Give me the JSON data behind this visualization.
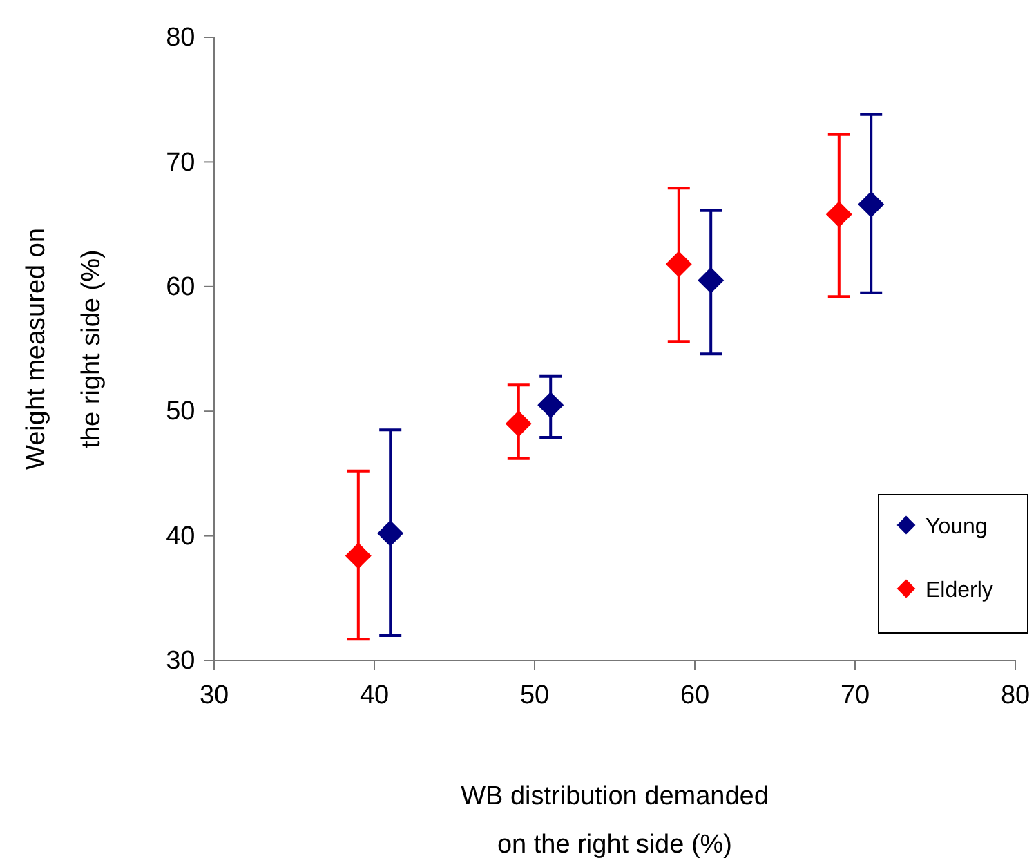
{
  "chart_data": {
    "type": "scatter",
    "xlabel": "WB distribution demanded\non the right side (%)",
    "ylabel": "Weight measured on\nthe right side (%)",
    "xlim": [
      30,
      80
    ],
    "xticks": [
      30,
      40,
      50,
      60,
      70,
      80
    ],
    "ylim": [
      30,
      80
    ],
    "yticks": [
      30,
      40,
      50,
      60,
      70,
      80
    ],
    "marker": "diamond",
    "grid": false,
    "legend": "bottom right",
    "series": [
      {
        "name": "Young",
        "color": "#000080",
        "x": [
          41,
          51,
          61,
          71
        ],
        "values": [
          40.2,
          50.5,
          60.5,
          66.6
        ],
        "errors": [
          [
            32.0,
            48.5
          ],
          [
            47.9,
            52.8
          ],
          [
            54.6,
            66.1
          ],
          [
            59.5,
            73.8
          ]
        ]
      },
      {
        "name": "Elderly",
        "color": "#ff0000",
        "x": [
          39,
          49,
          59,
          69
        ],
        "values": [
          38.4,
          49.0,
          61.8,
          65.8
        ],
        "errors": [
          [
            31.7,
            45.2
          ],
          [
            46.2,
            52.1
          ],
          [
            55.6,
            67.9
          ],
          [
            59.2,
            72.2
          ]
        ]
      }
    ]
  }
}
